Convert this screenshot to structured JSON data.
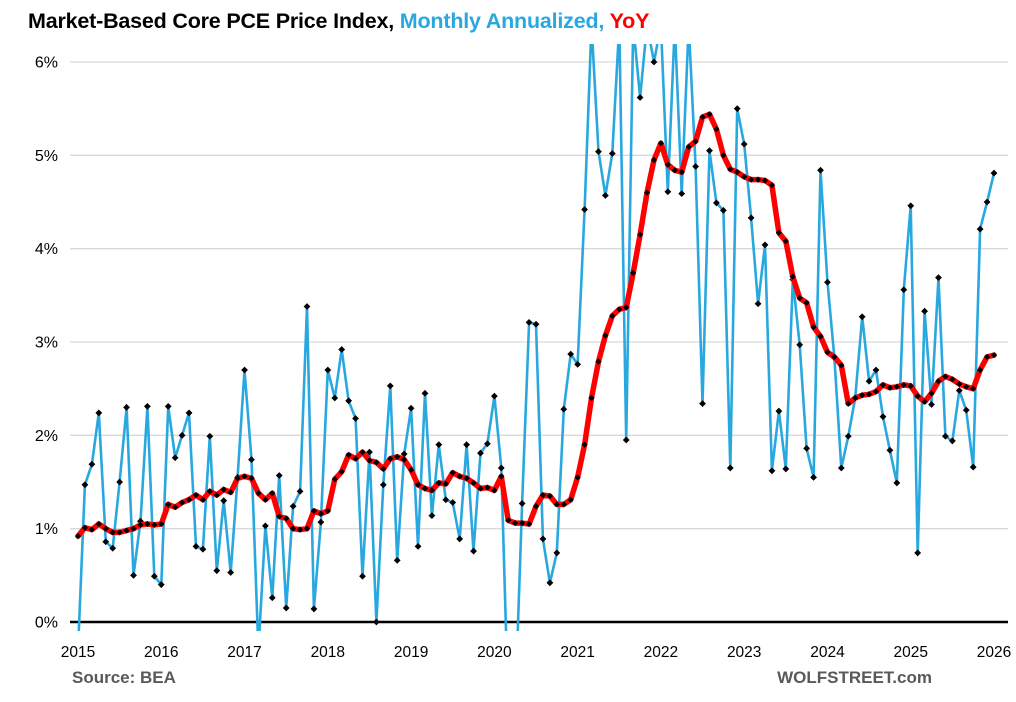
{
  "header": {
    "title_black": "Market-Based Core PCE Price Index, ",
    "title_blue": "Monthly Annualized, ",
    "title_red": "YoY"
  },
  "footer": {
    "source": "Source: BEA",
    "site": "WOLFSTREET.com"
  },
  "chart_data": {
    "type": "line",
    "title": "Market-Based Core PCE Price Index, Monthly Annualized, YoY",
    "frequency": "monthly",
    "x_start": "2015-01",
    "x_end": "2026-01",
    "x_tick_labels": [
      "2015",
      "2016",
      "2017",
      "2018",
      "2019",
      "2020",
      "2021",
      "2022",
      "2023",
      "2024",
      "2025",
      "2026"
    ],
    "y_tick_labels": [
      "0%",
      "1%",
      "2%",
      "3%",
      "4%",
      "5%",
      "6%"
    ],
    "ylim": [
      0,
      6
    ],
    "grid": "horizontal",
    "legend_position": "in-title",
    "marker_shape": "diamond",
    "note": "Blue monthly-annualized values above ~6.2% are clipped at the plot top; values below 0% are clipped just under the axis.",
    "colors": {
      "blue_series": "#29A8E0",
      "red_series": "#FF0000",
      "marker": "#000000",
      "gridline": "#D9D9D9",
      "axis": "#000000",
      "footer_text": "#595959"
    },
    "series": [
      {
        "name": "Monthly Annualized",
        "color": "#29A8E0",
        "line_width": 2.6,
        "marker_size": 3.4,
        "values": [
          -0.3,
          1.47,
          1.69,
          2.24,
          0.86,
          0.79,
          1.5,
          2.3,
          0.5,
          1.08,
          2.31,
          0.49,
          0.4,
          2.31,
          1.76,
          2.0,
          2.24,
          0.81,
          0.78,
          1.99,
          0.55,
          1.3,
          0.53,
          1.55,
          2.7,
          1.74,
          -0.3,
          1.03,
          0.26,
          1.57,
          0.15,
          1.24,
          1.4,
          3.38,
          0.14,
          1.07,
          2.7,
          2.4,
          2.92,
          2.37,
          2.18,
          0.49,
          1.82,
          0.0,
          1.47,
          2.53,
          0.66,
          1.8,
          2.29,
          0.81,
          2.45,
          1.14,
          1.9,
          1.31,
          1.28,
          0.89,
          1.9,
          0.76,
          1.81,
          1.91,
          2.42,
          1.65,
          -0.9,
          -0.9,
          1.27,
          3.21,
          3.19,
          0.89,
          0.42,
          0.74,
          2.28,
          2.87,
          2.76,
          4.42,
          6.4,
          5.04,
          4.57,
          5.02,
          6.4,
          1.95,
          6.4,
          5.62,
          6.4,
          6.0,
          6.4,
          4.61,
          6.4,
          4.59,
          6.4,
          4.88,
          2.34,
          5.05,
          4.49,
          4.41,
          1.65,
          5.5,
          5.12,
          4.33,
          3.41,
          4.04,
          1.62,
          2.26,
          1.64,
          3.67,
          2.97,
          1.86,
          1.55,
          4.84,
          3.64,
          2.83,
          1.65,
          1.99,
          2.4,
          3.27,
          2.58,
          2.7,
          2.2,
          1.84,
          1.49,
          3.56,
          4.46,
          0.74,
          3.33,
          2.33,
          3.69,
          1.99,
          1.94,
          2.48,
          2.27,
          1.66,
          4.21,
          4.5,
          4.81
        ]
      },
      {
        "name": "YoY",
        "color": "#FF0000",
        "line_width": 5.5,
        "marker_size": 3.1,
        "values": [
          0.92,
          1.01,
          0.99,
          1.05,
          1.0,
          0.96,
          0.96,
          0.98,
          1.0,
          1.04,
          1.05,
          1.04,
          1.05,
          1.26,
          1.23,
          1.28,
          1.31,
          1.36,
          1.31,
          1.4,
          1.36,
          1.42,
          1.39,
          1.54,
          1.56,
          1.54,
          1.38,
          1.31,
          1.38,
          1.13,
          1.11,
          1.0,
          0.99,
          1.0,
          1.19,
          1.16,
          1.19,
          1.53,
          1.61,
          1.79,
          1.75,
          1.82,
          1.73,
          1.71,
          1.64,
          1.75,
          1.77,
          1.74,
          1.63,
          1.47,
          1.43,
          1.41,
          1.49,
          1.48,
          1.6,
          1.56,
          1.54,
          1.49,
          1.43,
          1.44,
          1.41,
          1.56,
          1.09,
          1.06,
          1.06,
          1.05,
          1.24,
          1.36,
          1.35,
          1.26,
          1.26,
          1.31,
          1.55,
          1.9,
          2.4,
          2.79,
          3.07,
          3.28,
          3.35,
          3.37,
          3.74,
          4.15,
          4.6,
          4.95,
          5.13,
          4.9,
          4.84,
          4.82,
          5.09,
          5.15,
          5.41,
          5.44,
          5.28,
          5.0,
          4.85,
          4.82,
          4.77,
          4.74,
          4.74,
          4.73,
          4.68,
          4.17,
          4.08,
          3.7,
          3.47,
          3.42,
          3.16,
          3.06,
          2.89,
          2.84,
          2.75,
          2.34,
          2.4,
          2.43,
          2.44,
          2.47,
          2.54,
          2.51,
          2.52,
          2.54,
          2.53,
          2.42,
          2.36,
          2.45,
          2.58,
          2.63,
          2.6,
          2.55,
          2.52,
          2.5,
          2.7,
          2.84,
          2.86
        ]
      }
    ]
  }
}
